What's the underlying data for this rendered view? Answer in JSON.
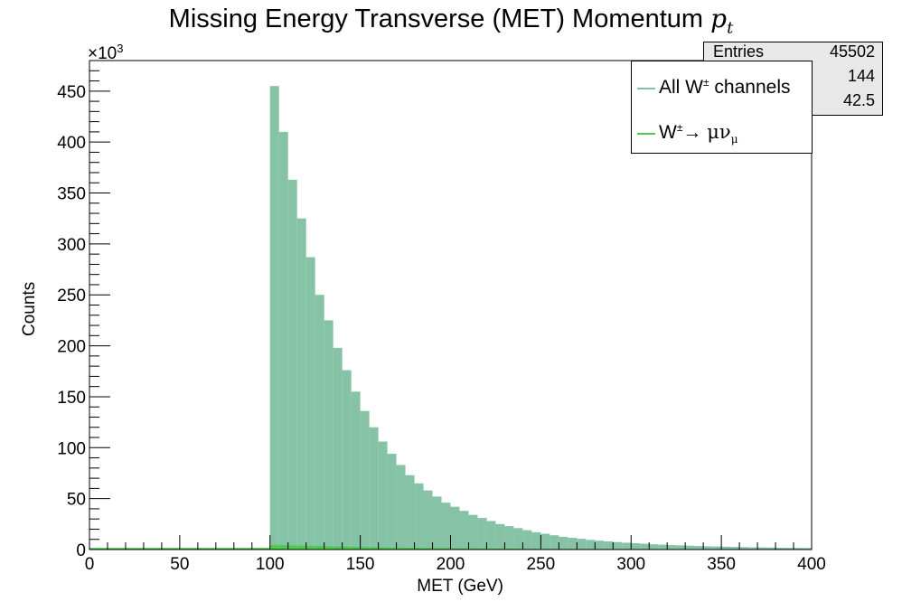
{
  "chart_data": {
    "type": "bar",
    "title": "Missing Energy Transverse (MET) Momentum",
    "title_symbol": "p",
    "title_symbol_sub": "t",
    "xlabel": "MET (GeV)",
    "ylabel": "Counts",
    "y_multiplier_label": "×10",
    "y_multiplier_exp": "3",
    "xlim": [
      0,
      400
    ],
    "ylim": [
      0,
      480
    ],
    "x_ticks": [
      0,
      50,
      100,
      150,
      200,
      250,
      300,
      350,
      400
    ],
    "y_ticks": [
      0,
      50,
      100,
      150,
      200,
      250,
      300,
      350,
      400,
      450
    ],
    "bin_width": 5,
    "grid": false,
    "legend_position": "top-right",
    "series": [
      {
        "name": "All W± channels",
        "color": "#86c2a6",
        "bin_start": 100,
        "values": [
          455,
          410,
          363,
          325,
          287,
          250,
          225,
          198,
          176,
          155,
          136,
          120,
          106,
          94,
          83,
          73,
          65,
          58,
          52,
          46,
          42,
          38,
          34,
          31,
          28,
          25,
          23,
          21,
          19,
          17,
          15.5,
          14,
          12.5,
          11.5,
          10.5,
          9.5,
          8.7,
          8,
          7.3,
          6.7,
          6.2,
          5.7,
          5.2,
          4.8,
          4.4,
          4.1,
          3.8,
          3.5,
          3.2,
          3,
          2.8,
          2.6,
          2.4,
          2.2,
          2.1,
          2,
          1.8,
          1.7,
          1.6,
          1.5
        ]
      },
      {
        "name": "W±→ μν_μ",
        "color": "#4ccc4c",
        "bin_start": 100,
        "values": [
          4.5,
          4.3,
          4.1,
          3.9,
          3.7,
          3.5,
          3.3,
          3.1,
          2.9,
          2.7,
          2.5,
          2.3,
          2.1,
          2.0,
          1.9,
          1.8,
          1.7,
          1.6,
          1.5,
          1.4,
          1.3,
          1.2,
          1.1,
          1.0,
          1.0,
          0.9,
          0.9,
          0.8,
          0.8,
          0.7,
          0.7,
          0.6,
          0.6,
          0.6,
          0.5,
          0.5,
          0.5,
          0.5,
          0.4,
          0.4,
          0.4,
          0.4,
          0.3,
          0.3,
          0.3,
          0.3,
          0.3,
          0.3,
          0.2,
          0.2,
          0.2,
          0.2,
          0.2,
          0.2,
          0.2,
          0.2,
          0.2,
          0.2,
          0.2,
          0.2
        ]
      }
    ]
  },
  "legend": {
    "entry1_main": "All W",
    "entry1_sup": "±",
    "entry1_rest": " channels",
    "entry2_main": "W",
    "entry2_sup": "±",
    "entry2_arrow": "→ ",
    "entry2_greek": "μν",
    "entry2_sub": "μ"
  },
  "stats": {
    "entries_label": "Entries",
    "entries_value": "45502",
    "mean_value": "144",
    "stddev_value": "42.5"
  }
}
